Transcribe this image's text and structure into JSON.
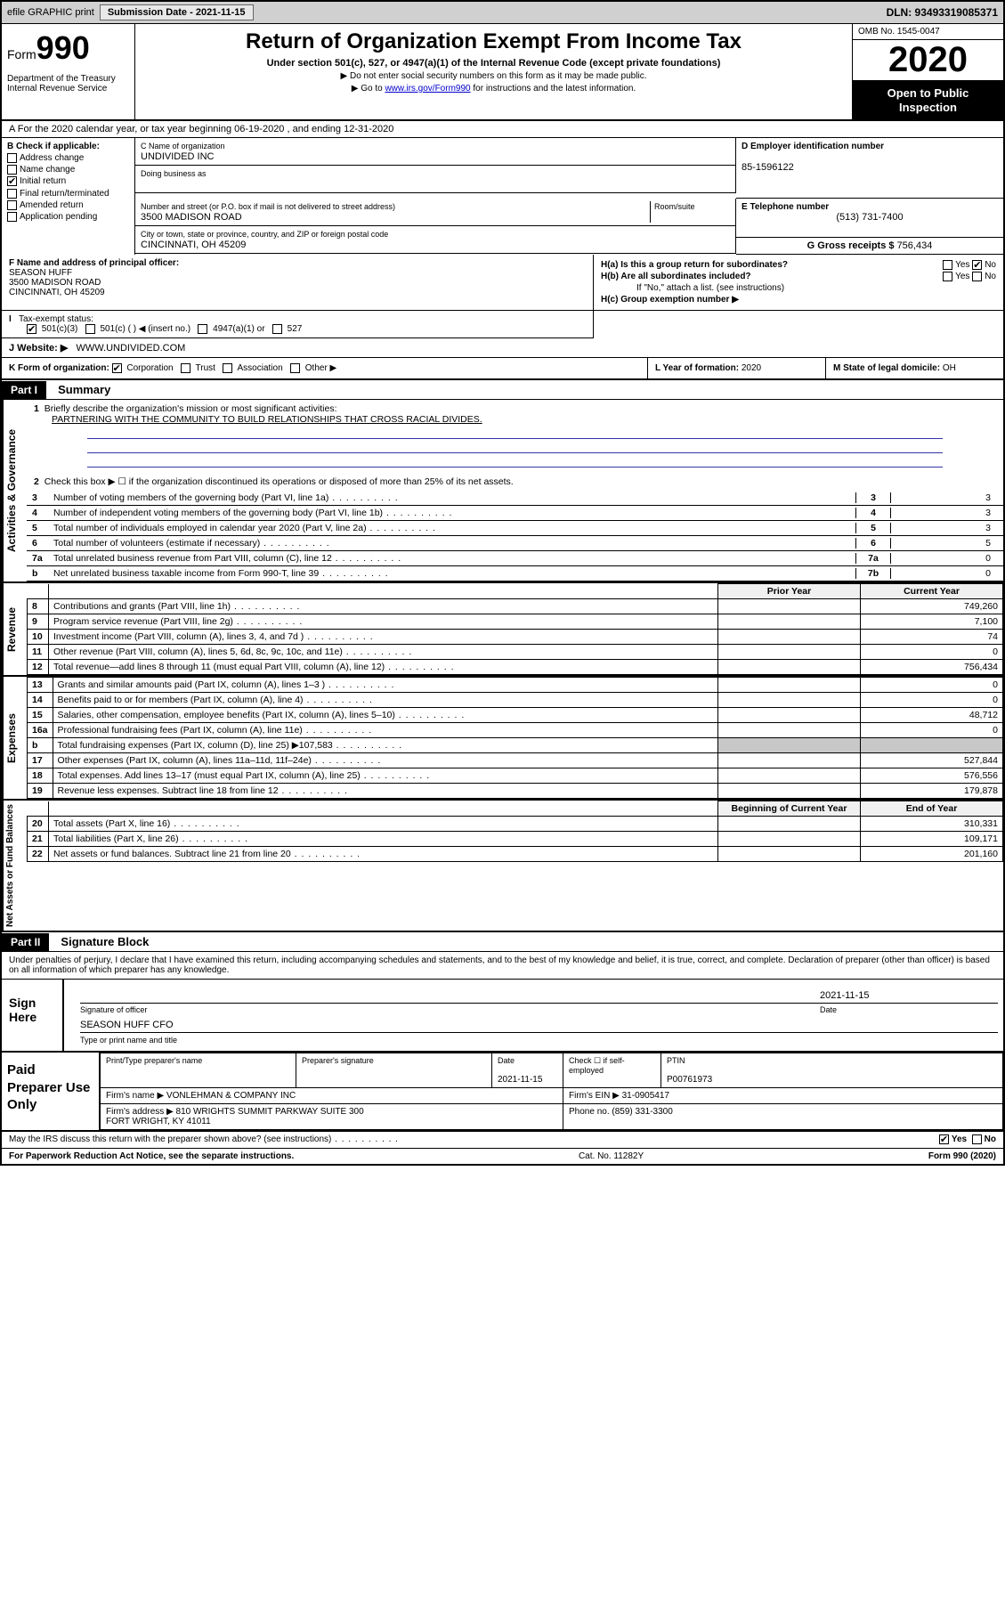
{
  "topbar": {
    "efile": "efile GRAPHIC print",
    "submission_label": "Submission Date - 2021-11-15",
    "dln": "DLN: 93493319085371"
  },
  "header": {
    "form_prefix": "Form",
    "form_num": "990",
    "dept": "Department of the Treasury\nInternal Revenue Service",
    "title": "Return of Organization Exempt From Income Tax",
    "subtitle": "Under section 501(c), 527, or 4947(a)(1) of the Internal Revenue Code (except private foundations)",
    "note1": "▶ Do not enter social security numbers on this form as it may be made public.",
    "note2_pre": "▶ Go to ",
    "note2_link": "www.irs.gov/Form990",
    "note2_post": " for instructions and the latest information.",
    "omb": "OMB No. 1545-0047",
    "year": "2020",
    "inspect": "Open to Public Inspection"
  },
  "a_line": "A For the 2020 calendar year, or tax year beginning 06-19-2020   , and ending 12-31-2020",
  "b": {
    "hdr": "B Check if applicable:",
    "items": [
      "Address change",
      "Name change",
      "Initial return",
      "Final return/terminated",
      "Amended return",
      "Application pending"
    ],
    "checked_idx": 2
  },
  "c": {
    "name_lbl": "C Name of organization",
    "name": "UNDIVIDED INC",
    "dba_lbl": "Doing business as",
    "dba": "",
    "street_lbl": "Number and street (or P.O. box if mail is not delivered to street address)",
    "room_lbl": "Room/suite",
    "street": "3500 MADISON ROAD",
    "city_lbl": "City or town, state or province, country, and ZIP or foreign postal code",
    "city": "CINCINNATI, OH  45209"
  },
  "d": {
    "lbl": "D Employer identification number",
    "val": "85-1596122"
  },
  "e": {
    "lbl": "E Telephone number",
    "val": "(513) 731-7400"
  },
  "g": {
    "lbl": "G Gross receipts $",
    "val": "756,434"
  },
  "f": {
    "lbl": "F  Name and address of principal officer:",
    "name": "SEASON HUFF",
    "addr1": "3500 MADISON ROAD",
    "addr2": "CINCINNATI, OH  45209"
  },
  "h": {
    "a": "H(a)  Is this a group return for subordinates?",
    "a_yes": "Yes",
    "a_no": "No",
    "b": "H(b)  Are all subordinates included?",
    "b_yes": "Yes",
    "b_no": "No",
    "b_note": "If \"No,\" attach a list. (see instructions)",
    "c": "H(c)  Group exemption number ▶"
  },
  "i": {
    "lbl": "Tax-exempt status:",
    "opts": [
      "501(c)(3)",
      "501(c) (  ) ◀ (insert no.)",
      "4947(a)(1) or",
      "527"
    ],
    "checked_idx": 0
  },
  "j": {
    "lbl": "J   Website: ▶",
    "val": "WWW.UNDIVIDED.COM"
  },
  "k": {
    "lbl": "K Form of organization:",
    "opts": [
      "Corporation",
      "Trust",
      "Association",
      "Other ▶"
    ],
    "checked_idx": 0
  },
  "l": {
    "lbl": "L Year of formation:",
    "val": "2020"
  },
  "m": {
    "lbl": "M State of legal domicile:",
    "val": "OH"
  },
  "part1": {
    "hdr": "Part I",
    "title": "Summary"
  },
  "summary": {
    "q1_lbl": "1",
    "q1": "Briefly describe the organization's mission or most significant activities:",
    "q1_val": "PARTNERING WITH THE COMMUNITY TO BUILD RELATIONSHIPS THAT CROSS RACIAL DIVIDES.",
    "q2_lbl": "2",
    "q2": "Check this box ▶ ☐  if the organization discontinued its operations or disposed of more than 25% of its net assets.",
    "rows": [
      {
        "n": "3",
        "t": "Number of voting members of the governing body (Part VI, line 1a)",
        "box": "3",
        "v": "3"
      },
      {
        "n": "4",
        "t": "Number of independent voting members of the governing body (Part VI, line 1b)",
        "box": "4",
        "v": "3"
      },
      {
        "n": "5",
        "t": "Total number of individuals employed in calendar year 2020 (Part V, line 2a)",
        "box": "5",
        "v": "3"
      },
      {
        "n": "6",
        "t": "Total number of volunteers (estimate if necessary)",
        "box": "6",
        "v": "5"
      },
      {
        "n": "7a",
        "t": "Total unrelated business revenue from Part VIII, column (C), line 12",
        "box": "7a",
        "v": "0"
      },
      {
        "n": "b",
        "t": "Net unrelated business taxable income from Form 990-T, line 39",
        "box": "7b",
        "v": "0"
      }
    ]
  },
  "revenue": {
    "side": "Revenue",
    "hdr_prior": "Prior Year",
    "hdr_current": "Current Year",
    "rows": [
      {
        "n": "8",
        "t": "Contributions and grants (Part VIII, line 1h)",
        "p": "",
        "c": "749,260"
      },
      {
        "n": "9",
        "t": "Program service revenue (Part VIII, line 2g)",
        "p": "",
        "c": "7,100"
      },
      {
        "n": "10",
        "t": "Investment income (Part VIII, column (A), lines 3, 4, and 7d )",
        "p": "",
        "c": "74"
      },
      {
        "n": "11",
        "t": "Other revenue (Part VIII, column (A), lines 5, 6d, 8c, 9c, 10c, and 11e)",
        "p": "",
        "c": "0"
      },
      {
        "n": "12",
        "t": "Total revenue—add lines 8 through 11 (must equal Part VIII, column (A), line 12)",
        "p": "",
        "c": "756,434"
      }
    ]
  },
  "expenses": {
    "side": "Expenses",
    "rows": [
      {
        "n": "13",
        "t": "Grants and similar amounts paid (Part IX, column (A), lines 1–3 )",
        "p": "",
        "c": "0"
      },
      {
        "n": "14",
        "t": "Benefits paid to or for members (Part IX, column (A), line 4)",
        "p": "",
        "c": "0"
      },
      {
        "n": "15",
        "t": "Salaries, other compensation, employee benefits (Part IX, column (A), lines 5–10)",
        "p": "",
        "c": "48,712"
      },
      {
        "n": "16a",
        "t": "Professional fundraising fees (Part IX, column (A), line 11e)",
        "p": "",
        "c": "0"
      },
      {
        "n": "b",
        "t": "Total fundraising expenses (Part IX, column (D), line 25) ▶107,583",
        "p": "shade",
        "c": "shade"
      },
      {
        "n": "17",
        "t": "Other expenses (Part IX, column (A), lines 11a–11d, 11f–24e)",
        "p": "",
        "c": "527,844"
      },
      {
        "n": "18",
        "t": "Total expenses. Add lines 13–17 (must equal Part IX, column (A), line 25)",
        "p": "",
        "c": "576,556"
      },
      {
        "n": "19",
        "t": "Revenue less expenses. Subtract line 18 from line 12",
        "p": "",
        "c": "179,878"
      }
    ]
  },
  "netassets": {
    "side": "Net Assets or Fund Balances",
    "hdr_begin": "Beginning of Current Year",
    "hdr_end": "End of Year",
    "rows": [
      {
        "n": "20",
        "t": "Total assets (Part X, line 16)",
        "p": "",
        "c": "310,331"
      },
      {
        "n": "21",
        "t": "Total liabilities (Part X, line 26)",
        "p": "",
        "c": "109,171"
      },
      {
        "n": "22",
        "t": "Net assets or fund balances. Subtract line 21 from line 20",
        "p": "",
        "c": "201,160"
      }
    ]
  },
  "part2": {
    "hdr": "Part II",
    "title": "Signature Block"
  },
  "perjury": "Under penalties of perjury, I declare that I have examined this return, including accompanying schedules and statements, and to the best of my knowledge and belief, it is true, correct, and complete. Declaration of preparer (other than officer) is based on all information of which preparer has any knowledge.",
  "sign": {
    "hdr": "Sign Here",
    "sig_lbl": "Signature of officer",
    "date_lbl": "Date",
    "date": "2021-11-15",
    "name": "SEASON HUFF  CFO",
    "name_lbl": "Type or print name and title"
  },
  "paid": {
    "hdr": "Paid Preparer Use Only",
    "col_print": "Print/Type preparer's name",
    "col_sig": "Preparer's signature",
    "col_date": "Date",
    "date": "2021-11-15",
    "col_check": "Check ☐ if self-employed",
    "col_ptin": "PTIN",
    "ptin": "P00761973",
    "firm_name_lbl": "Firm's name      ▶",
    "firm_name": "VONLEHMAN & COMPANY INC",
    "firm_ein_lbl": "Firm's EIN ▶",
    "firm_ein": "31-0905417",
    "firm_addr_lbl": "Firm's address ▶",
    "firm_addr": "810 WRIGHTS SUMMIT PARKWAY SUITE 300\nFORT WRIGHT, KY  41011",
    "phone_lbl": "Phone no.",
    "phone": "(859) 331-3300"
  },
  "footer": {
    "discuss": "May the IRS discuss this return with the preparer shown above? (see instructions)",
    "yes": "Yes",
    "no": "No",
    "pra": "For Paperwork Reduction Act Notice, see the separate instructions.",
    "cat": "Cat. No. 11282Y",
    "form": "Form 990 (2020)"
  },
  "gov_side": "Activities & Governance"
}
